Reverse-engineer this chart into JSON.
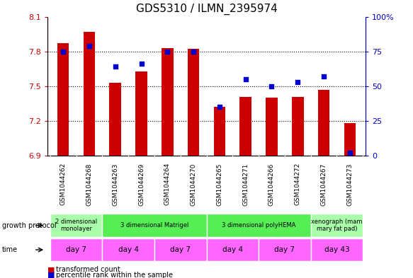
{
  "title": "GDS5310 / ILMN_2395974",
  "samples": [
    "GSM1044262",
    "GSM1044268",
    "GSM1044263",
    "GSM1044269",
    "GSM1044264",
    "GSM1044270",
    "GSM1044265",
    "GSM1044271",
    "GSM1044266",
    "GSM1044272",
    "GSM1044267",
    "GSM1044273"
  ],
  "red_values": [
    7.87,
    7.97,
    7.53,
    7.63,
    7.83,
    7.82,
    7.32,
    7.41,
    7.4,
    7.41,
    7.47,
    7.18
  ],
  "blue_values": [
    75,
    79,
    64,
    66,
    75,
    75,
    35,
    55,
    50,
    53,
    57,
    2
  ],
  "ymin": 6.9,
  "ymax": 8.1,
  "y2min": 0,
  "y2max": 100,
  "yticks": [
    6.9,
    7.2,
    7.5,
    7.8,
    8.1
  ],
  "y2ticks": [
    0,
    25,
    50,
    75,
    100
  ],
  "y2tick_labels": [
    "0",
    "25",
    "50",
    "75",
    "100%"
  ],
  "bar_color": "#cc0000",
  "dot_color": "#0000cc",
  "bar_bottom": 6.9,
  "grid_lines": [
    7.2,
    7.5,
    7.8
  ],
  "growth_protocol_groups": [
    {
      "label": "2 dimensional\nmonolayer",
      "start": 0,
      "end": 2,
      "color": "#aaffaa"
    },
    {
      "label": "3 dimensional Matrigel",
      "start": 2,
      "end": 6,
      "color": "#55ee55"
    },
    {
      "label": "3 dimensional polyHEMA",
      "start": 6,
      "end": 10,
      "color": "#55ee55"
    },
    {
      "label": "xenograph (mam\nmary fat pad)",
      "start": 10,
      "end": 12,
      "color": "#aaffaa"
    }
  ],
  "time_groups": [
    {
      "label": "day 7",
      "start": 0,
      "end": 2
    },
    {
      "label": "day 4",
      "start": 2,
      "end": 4
    },
    {
      "label": "day 7",
      "start": 4,
      "end": 6
    },
    {
      "label": "day 4",
      "start": 6,
      "end": 8
    },
    {
      "label": "day 7",
      "start": 8,
      "end": 10
    },
    {
      "label": "day 43",
      "start": 10,
      "end": 12
    }
  ],
  "time_color": "#ff66ff",
  "left_axis_color": "#cc0000",
  "right_axis_color": "#0000cc",
  "sample_bg_color": "#cccccc",
  "bg_color": "#ffffff"
}
